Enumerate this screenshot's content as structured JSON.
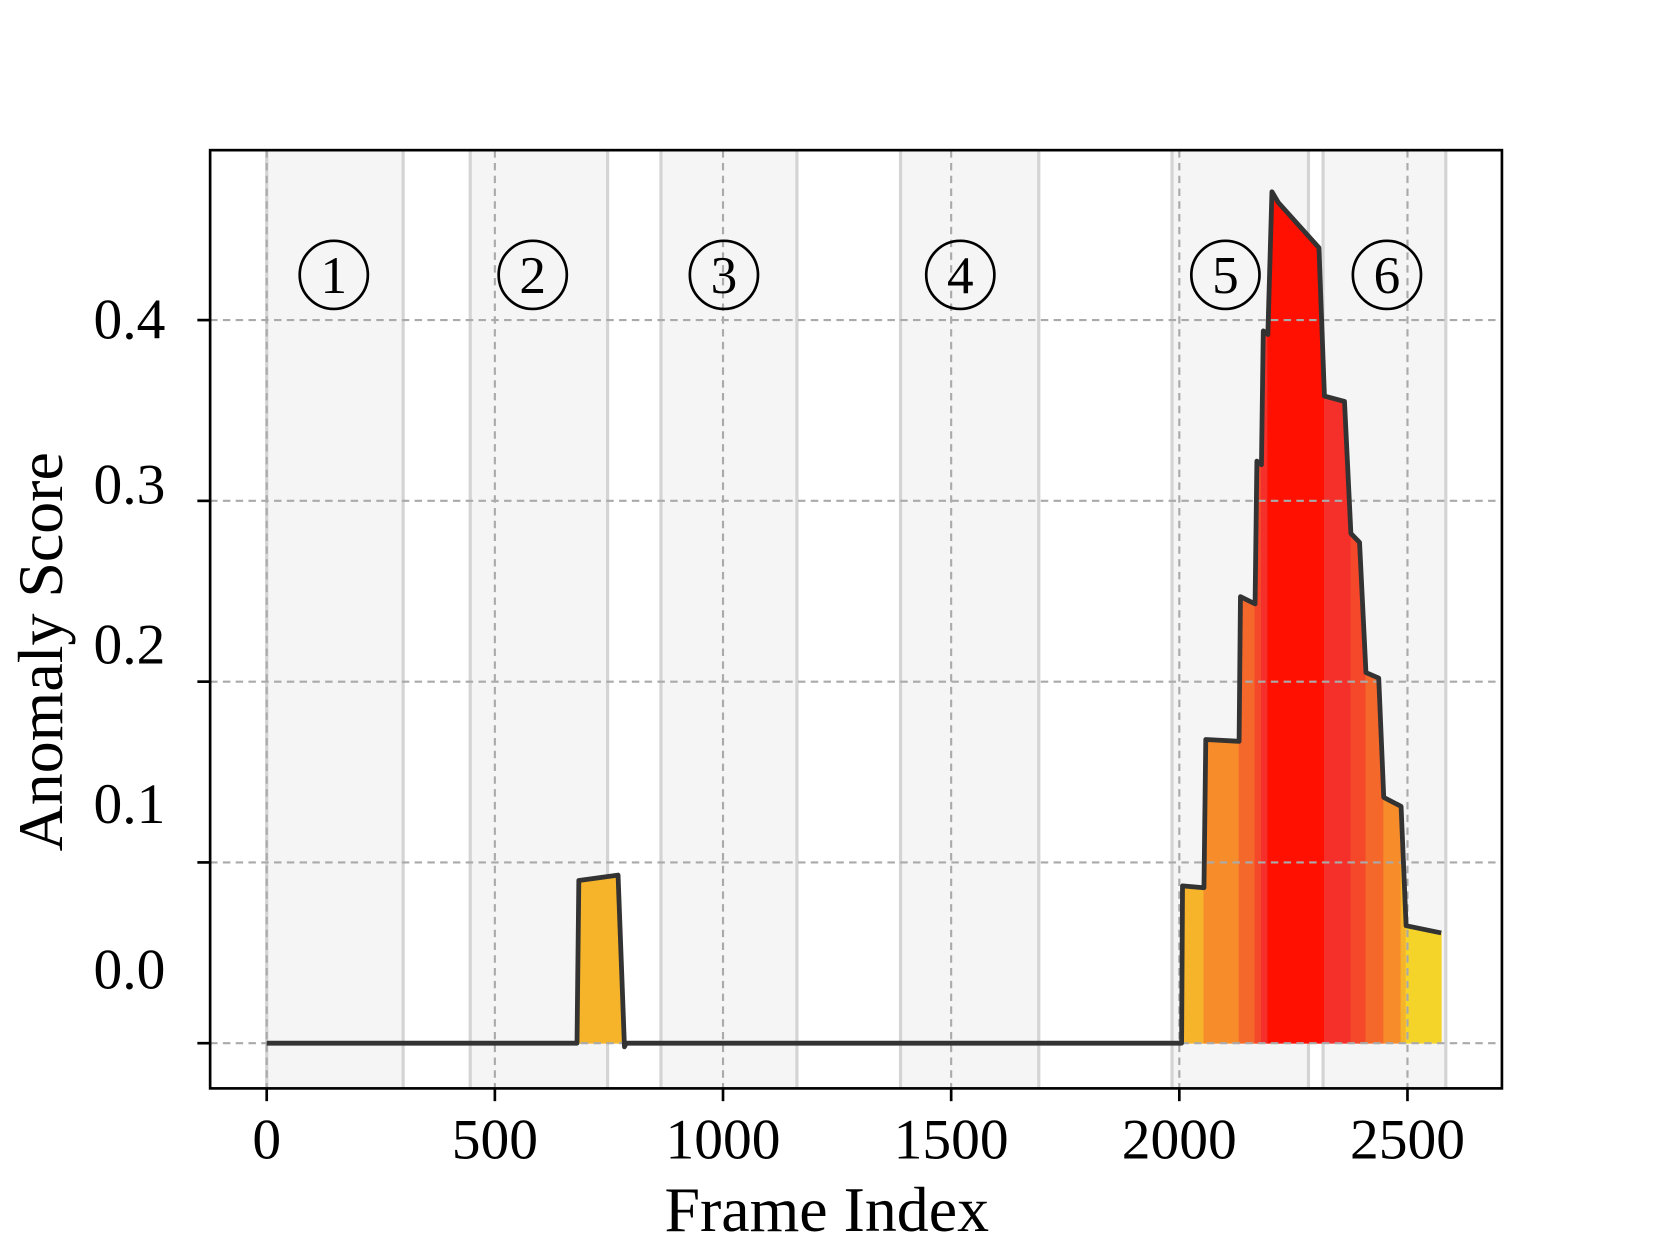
{
  "chart_data": {
    "type": "area",
    "title": "",
    "xlabel": "Frame Index",
    "ylabel": "Anomaly Score",
    "xlim": [
      -124,
      2707
    ],
    "ylim": [
      -0.025,
      0.494
    ],
    "xticks": [
      0,
      500,
      1000,
      1500,
      2000,
      2500
    ],
    "xtick_labels": [
      "0",
      "500",
      "1000",
      "1500",
      "2000",
      "2500"
    ],
    "yticks": [
      0.0,
      0.1,
      0.2,
      0.3,
      0.4
    ],
    "ytick_labels": [
      "0.0",
      "0.1",
      "0.2",
      "0.3",
      "0.4"
    ],
    "grid": true,
    "line_color": "#333333",
    "fill_colormap": [
      "#f5d42a",
      "#f6b42a",
      "#f68c2a",
      "#f5682b",
      "#f5482b",
      "#f5302b",
      "#ff1000"
    ],
    "band_color": "#f5f5f5",
    "segments": [
      {
        "label": "1",
        "start": 0,
        "end": 299,
        "label_x": 147
      },
      {
        "label": "2",
        "start": 446,
        "end": 747,
        "label_x": 583
      },
      {
        "label": "3",
        "start": 864,
        "end": 1162,
        "label_x": 1002
      },
      {
        "label": "4",
        "start": 1389,
        "end": 1692,
        "label_x": 1520
      },
      {
        "label": "5",
        "start": 1984,
        "end": 2283,
        "label_x": 2101
      },
      {
        "label": "6",
        "start": 2315,
        "end": 2584,
        "label_x": 2455
      }
    ],
    "segment_label_y": 0.425,
    "series": [
      {
        "x": [
          0,
          680,
          684,
          770,
          784,
          788,
          2005,
          2007,
          2054,
          2058,
          2131,
          2134,
          2166,
          2170,
          2180,
          2184,
          2194,
          2203,
          2217,
          2306,
          2318,
          2362,
          2376,
          2395,
          2409,
          2437,
          2448,
          2486,
          2497,
          2574
        ],
        "y": [
          0,
          0,
          0.09,
          0.093,
          -0.002,
          0,
          0,
          0.087,
          0.086,
          0.168,
          0.167,
          0.247,
          0.243,
          0.322,
          0.32,
          0.394,
          0.392,
          0.471,
          0.465,
          0.44,
          0.358,
          0.355,
          0.282,
          0.277,
          0.205,
          0.202,
          0.136,
          0.131,
          0.065,
          0.061
        ]
      }
    ]
  }
}
